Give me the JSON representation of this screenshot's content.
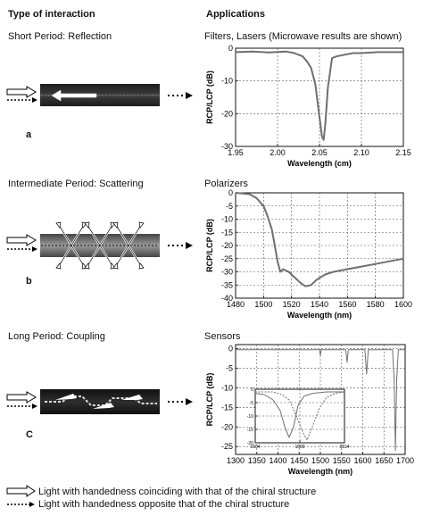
{
  "headers": {
    "left": "Type of interaction",
    "right": "Applications"
  },
  "rows": [
    {
      "period_label": "Short Period: Reflection",
      "application": "Filters, Lasers (Microwave results are shown)",
      "letter": "a"
    },
    {
      "period_label": "Intermediate Period:  Scattering",
      "application": "Polarizers",
      "letter": "b"
    },
    {
      "period_label": "Long Period:  Coupling",
      "application": "Sensors",
      "letter": "C"
    }
  ],
  "legend": {
    "coinciding": "Light with handedness coinciding with that of the chiral structure",
    "opposite": "Light with handedness opposite that of the chiral structure"
  },
  "colors": {
    "curve": "#6f6f6f",
    "grid": "#555555",
    "axis": "#111111"
  },
  "chart_data": [
    {
      "type": "line",
      "xlabel": "Wavelength (cm)",
      "ylabel": "RCP/LCP (dB)",
      "xlim": [
        1.95,
        2.15
      ],
      "ylim": [
        -30,
        0
      ],
      "xticks": [
        "1.95",
        "2.00",
        "2.05",
        "2.10",
        "2.15"
      ],
      "yticks": [
        "0",
        "-10",
        "-20",
        "-30"
      ],
      "x": [
        1.95,
        1.97,
        1.99,
        2.01,
        2.02,
        2.03,
        2.035,
        2.04,
        2.045,
        2.05,
        2.053,
        2.055,
        2.057,
        2.06,
        2.065,
        2.07,
        2.08,
        2.09,
        2.1,
        2.12,
        2.15
      ],
      "y": [
        -1.2,
        -1.0,
        -1.3,
        -1.0,
        -1.5,
        -2.5,
        -4,
        -6,
        -11,
        -21,
        -27,
        -28,
        -23,
        -12,
        -3,
        -2.5,
        -2,
        -1.5,
        -1.5,
        -1.2,
        -1.2
      ]
    },
    {
      "type": "line",
      "xlabel": "Wavelength (nm)",
      "ylabel": "RCP/LCP (dB)",
      "xlim": [
        1480,
        1600
      ],
      "ylim": [
        -40,
        0
      ],
      "xticks": [
        "1480",
        "1500",
        "1520",
        "1540",
        "1560",
        "1580",
        "1600"
      ],
      "yticks": [
        "0",
        "-5",
        "-10",
        "-15",
        "-20",
        "-25",
        "-30",
        "-35",
        "-40"
      ],
      "x": [
        1480,
        1490,
        1495,
        1500,
        1503,
        1506,
        1508,
        1510,
        1512,
        1514,
        1518,
        1522,
        1526,
        1530,
        1534,
        1538,
        1544,
        1550,
        1560,
        1570,
        1580,
        1590,
        1600
      ],
      "y": [
        0,
        -0.5,
        -2,
        -5,
        -9,
        -14,
        -20,
        -26,
        -30,
        -29,
        -30,
        -32,
        -34,
        -35.5,
        -35,
        -33,
        -31,
        -30,
        -29,
        -28,
        -27,
        -26,
        -25
      ]
    },
    {
      "type": "line",
      "xlabel": "Wavelength (nm)",
      "ylabel": "RCP/LCP (dB)",
      "xlim": [
        1300,
        1700
      ],
      "ylim": [
        -27,
        1
      ],
      "xticks": [
        "1300",
        "1350",
        "1400",
        "1450",
        "1500",
        "1550",
        "1600",
        "1650",
        "1700"
      ],
      "yticks": [
        "0",
        "-5",
        "-10",
        "-15",
        "-20",
        "-25"
      ],
      "x": [
        1300,
        1400,
        1498,
        1500,
        1502,
        1560,
        1563,
        1566,
        1605,
        1609,
        1613,
        1670,
        1674,
        1677,
        1680,
        1684,
        1700
      ],
      "y": [
        -0.3,
        -0.3,
        -0.3,
        -1.8,
        -0.3,
        -0.3,
        -3.5,
        -0.3,
        -0.3,
        -6.5,
        -0.3,
        -0.3,
        -8,
        -26,
        -8,
        -0.3,
        -0.3
      ]
    },
    {
      "type": "line",
      "role": "inset",
      "xlim": [
        1604,
        1614
      ],
      "ylim": [
        -20,
        0
      ],
      "xticks": [
        "1604",
        "1609",
        "1614"
      ],
      "yticks": [
        "0",
        "-5",
        "-10",
        "-15",
        "-20"
      ],
      "series": [
        {
          "x": [
            1604,
            1605,
            1606,
            1606.8,
            1607.3,
            1607.8,
            1608.3,
            1608.8,
            1609.5,
            1610.5,
            1612,
            1614
          ],
          "y": [
            -1.5,
            -2,
            -4,
            -8,
            -14,
            -18,
            -14,
            -6,
            -2.5,
            -1.5,
            -1,
            -1
          ]
        },
        {
          "x": [
            1604,
            1606,
            1607,
            1607.8,
            1608.5,
            1609.2,
            1609.8,
            1610.4,
            1611.2,
            1612,
            1613,
            1614
          ],
          "y": [
            -1,
            -1,
            -2,
            -4,
            -9,
            -15,
            -19,
            -14,
            -7,
            -3,
            -1.5,
            -1
          ]
        }
      ]
    }
  ]
}
